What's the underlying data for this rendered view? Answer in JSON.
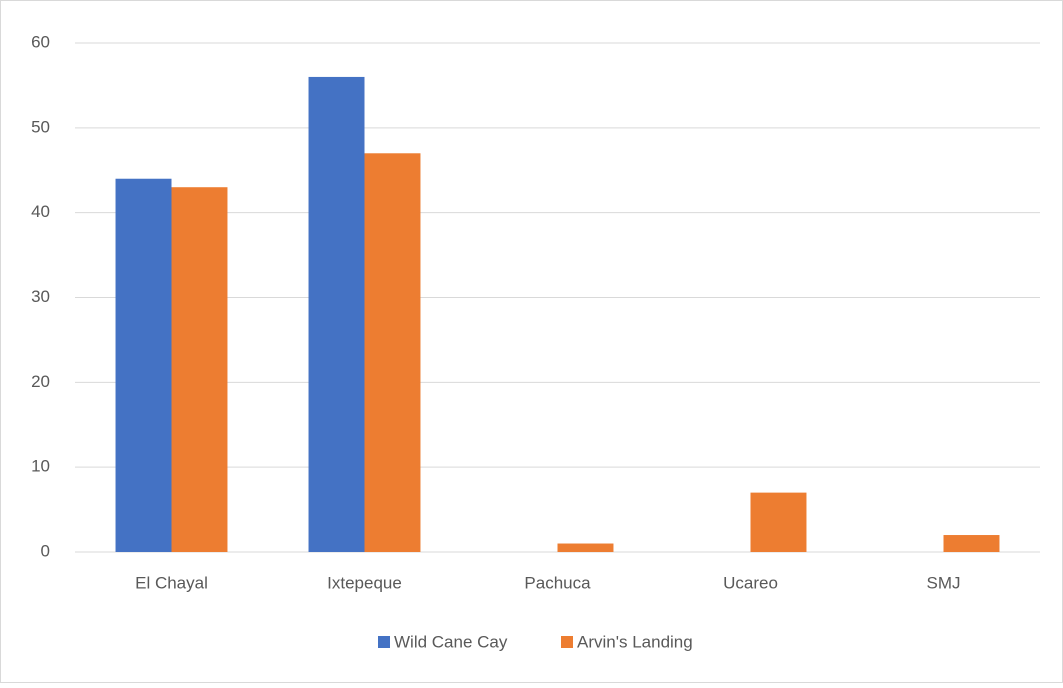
{
  "chart_data": {
    "type": "bar",
    "categories": [
      "El Chayal",
      "Ixtepeque",
      "Pachuca",
      "Ucareo",
      "SMJ"
    ],
    "series": [
      {
        "name": "Wild Cane Cay",
        "color": "#4472c4",
        "values": [
          44,
          56,
          0,
          0,
          0
        ]
      },
      {
        "name": "Arvin's Landing",
        "color": "#ed7d31",
        "values": [
          43,
          47,
          1,
          7,
          2
        ]
      }
    ],
    "ylim": [
      0,
      60
    ],
    "yticks": [
      0,
      10,
      20,
      30,
      40,
      50,
      60
    ],
    "grid": true,
    "legend": "bottom"
  }
}
